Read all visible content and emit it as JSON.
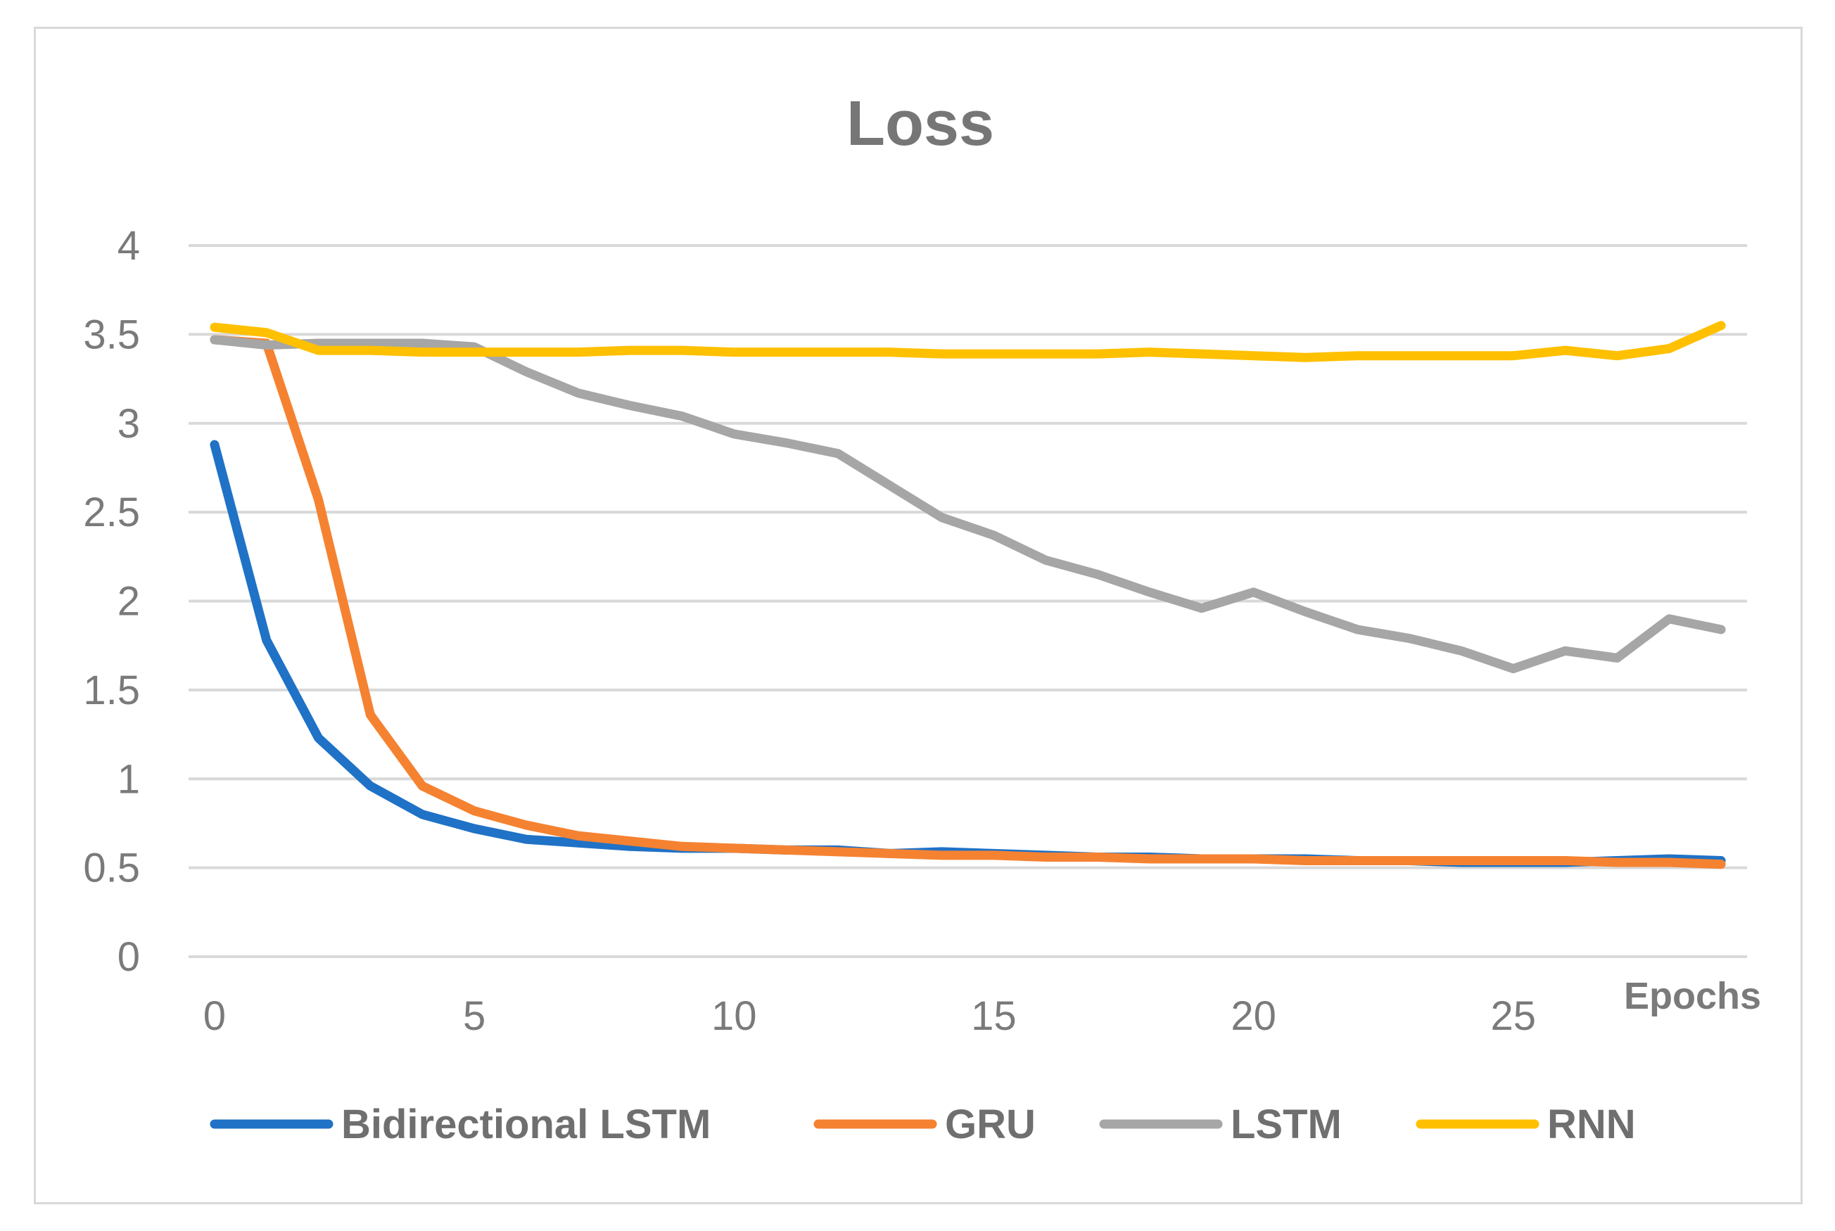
{
  "chart_data": {
    "type": "line",
    "title": "Loss",
    "xlabel": "Epochs",
    "ylabel": "",
    "xlim": [
      -0.5,
      29.5
    ],
    "ylim": [
      0,
      4
    ],
    "xticks": [
      0,
      5,
      10,
      15,
      20,
      25
    ],
    "yticks": [
      0,
      0.5,
      1,
      1.5,
      2,
      2.5,
      3,
      3.5,
      4
    ],
    "ytick_labels": [
      "0",
      "0.5",
      "1",
      "1.5",
      "2",
      "2.5",
      "3",
      "3.5",
      "4"
    ],
    "grid": true,
    "legend_position": "bottom",
    "x": [
      0,
      1,
      2,
      3,
      4,
      5,
      6,
      7,
      8,
      9,
      10,
      11,
      12,
      13,
      14,
      15,
      16,
      17,
      18,
      19,
      20,
      21,
      22,
      23,
      24,
      25,
      26,
      27,
      28,
      29
    ],
    "series": [
      {
        "name": "Bidirectional LSTM",
        "color": "#1f72c6",
        "values": [
          2.88,
          1.78,
          1.23,
          0.96,
          0.8,
          0.72,
          0.66,
          0.64,
          0.62,
          0.61,
          0.61,
          0.6,
          0.6,
          0.58,
          0.59,
          0.58,
          0.57,
          0.56,
          0.56,
          0.55,
          0.55,
          0.55,
          0.54,
          0.54,
          0.53,
          0.53,
          0.53,
          0.54,
          0.55,
          0.54
        ]
      },
      {
        "name": "GRU",
        "color": "#f58231",
        "values": [
          3.47,
          3.45,
          2.57,
          1.36,
          0.96,
          0.82,
          0.74,
          0.68,
          0.65,
          0.62,
          0.61,
          0.6,
          0.59,
          0.58,
          0.57,
          0.57,
          0.56,
          0.56,
          0.55,
          0.55,
          0.55,
          0.54,
          0.54,
          0.54,
          0.54,
          0.54,
          0.54,
          0.53,
          0.53,
          0.52
        ]
      },
      {
        "name": "LSTM",
        "color": "#a6a6a6",
        "values": [
          3.47,
          3.44,
          3.45,
          3.45,
          3.45,
          3.43,
          3.29,
          3.17,
          3.1,
          3.04,
          2.94,
          2.89,
          2.83,
          2.65,
          2.47,
          2.37,
          2.23,
          2.15,
          2.05,
          1.96,
          2.05,
          1.94,
          1.84,
          1.79,
          1.72,
          1.62,
          1.72,
          1.68,
          1.9,
          1.84
        ]
      },
      {
        "name": "RNN",
        "color": "#ffc000",
        "values": [
          3.54,
          3.51,
          3.41,
          3.41,
          3.4,
          3.4,
          3.4,
          3.4,
          3.41,
          3.41,
          3.4,
          3.4,
          3.4,
          3.4,
          3.39,
          3.39,
          3.39,
          3.39,
          3.4,
          3.39,
          3.38,
          3.37,
          3.38,
          3.38,
          3.38,
          3.38,
          3.41,
          3.38,
          3.42,
          3.55
        ]
      }
    ]
  }
}
